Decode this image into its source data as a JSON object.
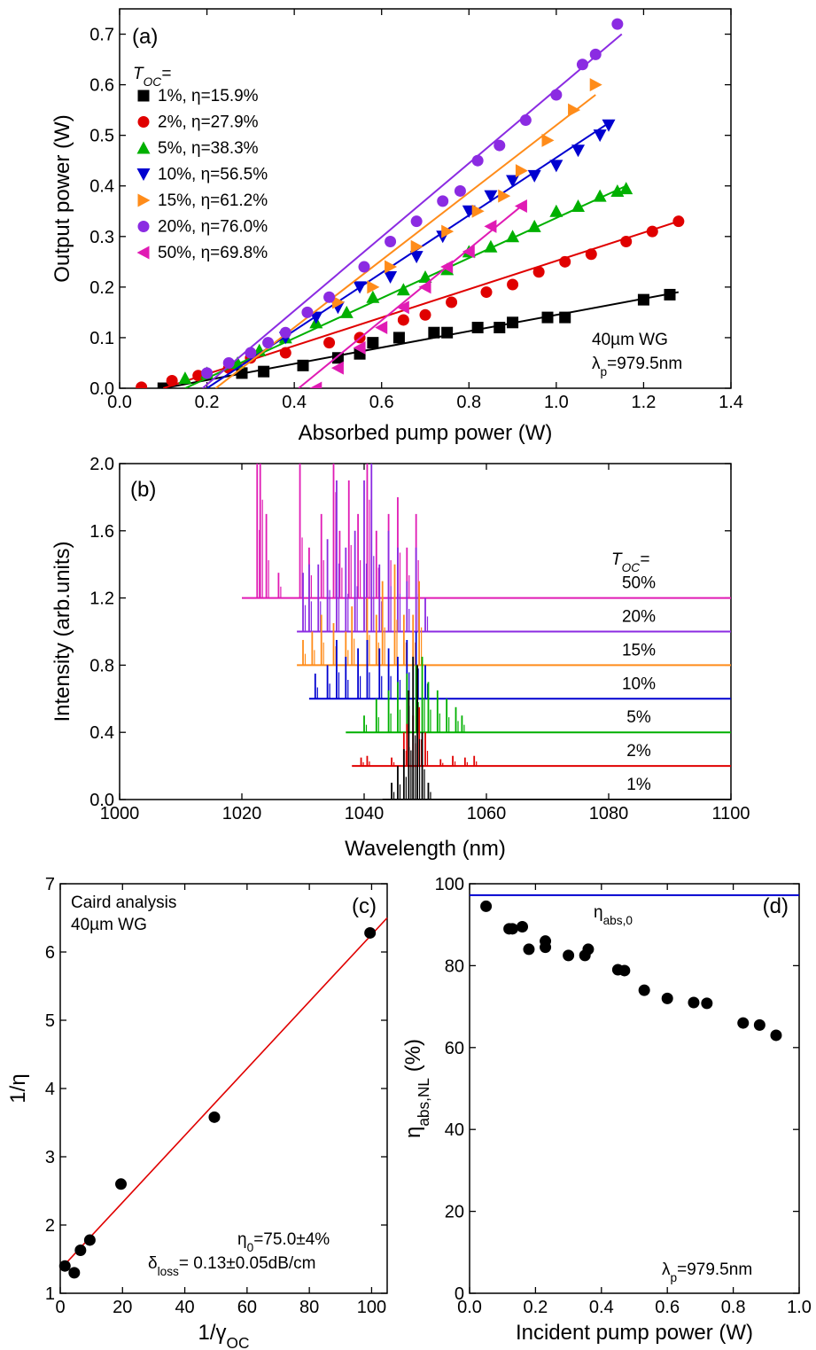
{
  "chart_data": [
    {
      "id": "a",
      "type": "scatter",
      "panel_label": "(a)",
      "xlabel": "Absorbed pump power (W)",
      "ylabel": "Output power (W)",
      "xlim": [
        0.0,
        1.4
      ],
      "ylim": [
        0.0,
        0.75
      ],
      "xticks": [
        "0.0",
        "0.2",
        "0.4",
        "0.6",
        "0.8",
        "1.0",
        "1.2",
        "1.4"
      ],
      "yticks": [
        "0.0",
        "0.1",
        "0.2",
        "0.3",
        "0.4",
        "0.5",
        "0.6",
        "0.7"
      ],
      "legend_title": "T",
      "legend_title_sub": "OC",
      "legend_title_suffix": "=",
      "legend_position": "top-left",
      "annotation_line1": "40µm WG",
      "annotation_line2_pre": "λ",
      "annotation_line2_sub": "p",
      "annotation_line2_post": "=979.5nm",
      "series": [
        {
          "name": "1%, η=15.9%",
          "color": "#000000",
          "marker": "square",
          "x": [
            0.1,
            0.28,
            0.33,
            0.42,
            0.5,
            0.55,
            0.58,
            0.64,
            0.72,
            0.75,
            0.82,
            0.87,
            0.9,
            0.98,
            1.02,
            1.2,
            1.26
          ],
          "y": [
            0.0,
            0.03,
            0.033,
            0.045,
            0.06,
            0.068,
            0.09,
            0.1,
            0.11,
            0.11,
            0.12,
            0.12,
            0.13,
            0.14,
            0.14,
            0.175,
            0.185
          ],
          "fit": [
            [
              0.1,
              0.0
            ],
            [
              1.28,
              0.19
            ]
          ]
        },
        {
          "name": "2%, η=27.9%",
          "color": "#e00000",
          "marker": "circle",
          "x": [
            0.05,
            0.12,
            0.18,
            0.25,
            0.3,
            0.38,
            0.48,
            0.55,
            0.65,
            0.7,
            0.76,
            0.84,
            0.9,
            0.96,
            1.02,
            1.08,
            1.16,
            1.22,
            1.28
          ],
          "y": [
            0.002,
            0.015,
            0.025,
            0.04,
            0.06,
            0.07,
            0.09,
            0.1,
            0.135,
            0.145,
            0.17,
            0.19,
            0.205,
            0.23,
            0.25,
            0.265,
            0.29,
            0.31,
            0.33
          ],
          "fit": [
            [
              0.1,
              0.0
            ],
            [
              1.28,
              0.33
            ]
          ]
        },
        {
          "name": "5%, η=38.3%",
          "color": "#00b000",
          "marker": "triangle-up",
          "x": [
            0.15,
            0.2,
            0.27,
            0.32,
            0.38,
            0.45,
            0.52,
            0.58,
            0.65,
            0.7,
            0.75,
            0.8,
            0.85,
            0.9,
            0.95,
            1.0,
            1.05,
            1.1,
            1.14,
            1.16
          ],
          "y": [
            0.02,
            0.03,
            0.05,
            0.075,
            0.1,
            0.13,
            0.15,
            0.18,
            0.195,
            0.22,
            0.235,
            0.27,
            0.28,
            0.3,
            0.32,
            0.35,
            0.36,
            0.38,
            0.39,
            0.395
          ],
          "fit": [
            [
              0.15,
              0.0
            ],
            [
              1.16,
              0.4
            ]
          ]
        },
        {
          "name": "10%, η=56.5%",
          "color": "#0000d0",
          "marker": "triangle-down",
          "x": [
            0.38,
            0.45,
            0.5,
            0.55,
            0.62,
            0.68,
            0.74,
            0.8,
            0.85,
            0.9,
            0.95,
            1.0,
            1.05,
            1.1,
            1.12
          ],
          "y": [
            0.1,
            0.14,
            0.16,
            0.2,
            0.22,
            0.26,
            0.3,
            0.35,
            0.38,
            0.41,
            0.42,
            0.44,
            0.47,
            0.5,
            0.52
          ],
          "fit": [
            [
              0.2,
              0.0
            ],
            [
              1.13,
              0.53
            ]
          ]
        },
        {
          "name": "15%, η=61.2%",
          "color": "#ff8c1a",
          "marker": "triangle-right",
          "x": [
            0.5,
            0.58,
            0.62,
            0.68,
            0.75,
            0.82,
            0.88,
            0.92,
            0.98,
            1.04,
            1.09
          ],
          "y": [
            0.17,
            0.2,
            0.24,
            0.28,
            0.31,
            0.35,
            0.38,
            0.43,
            0.49,
            0.55,
            0.6
          ],
          "fit": [
            [
              0.22,
              0.0
            ],
            [
              1.09,
              0.58
            ]
          ]
        },
        {
          "name": "20%, η=76.0%",
          "color": "#8b2be2",
          "marker": "circle",
          "x": [
            0.2,
            0.25,
            0.3,
            0.34,
            0.38,
            0.43,
            0.48,
            0.56,
            0.62,
            0.68,
            0.74,
            0.78,
            0.82,
            0.87,
            0.93,
            1.0,
            1.06,
            1.09,
            1.14
          ],
          "y": [
            0.03,
            0.05,
            0.07,
            0.09,
            0.11,
            0.15,
            0.18,
            0.24,
            0.29,
            0.33,
            0.37,
            0.39,
            0.45,
            0.48,
            0.53,
            0.58,
            0.64,
            0.66,
            0.72
          ],
          "fit": [
            [
              0.19,
              0.0
            ],
            [
              1.15,
              0.7
            ]
          ]
        },
        {
          "name": "50%, η=69.8%",
          "color": "#e01bb4",
          "marker": "triangle-left",
          "x": [
            0.45,
            0.5,
            0.55,
            0.6,
            0.65,
            0.7,
            0.75,
            0.8,
            0.85,
            0.92
          ],
          "y": [
            0.0,
            0.04,
            0.08,
            0.12,
            0.16,
            0.2,
            0.24,
            0.27,
            0.32,
            0.36
          ],
          "fit": [
            [
              0.41,
              0.0
            ],
            [
              0.92,
              0.36
            ]
          ]
        }
      ]
    },
    {
      "id": "b",
      "type": "line",
      "panel_label": "(b)",
      "xlabel": "Wavelength (nm)",
      "ylabel": "Intensity (arb.units)",
      "xlim": [
        1000,
        1100
      ],
      "ylim": [
        0.0,
        2.0
      ],
      "xticks": [
        "1000",
        "1020",
        "1040",
        "1060",
        "1080",
        "1100"
      ],
      "yticks": [
        "0.0",
        "0.4",
        "0.8",
        "1.2",
        "1.6",
        "2.0"
      ],
      "legend_title": "T",
      "legend_title_sub": "OC",
      "legend_title_suffix": "=",
      "series": [
        {
          "name": "50%",
          "color": "#e01bb4",
          "baseline": 1.2,
          "range": [
            1020,
            1052
          ],
          "peaks": [
            [
              1022.5,
              0.9
            ],
            [
              1023,
              1.3
            ],
            [
              1024,
              0.5
            ],
            [
              1026,
              0.15
            ],
            [
              1029.5,
              0.8
            ],
            [
              1031,
              0.3
            ],
            [
              1033,
              0.5
            ],
            [
              1035,
              1.4
            ],
            [
              1036,
              0.4
            ],
            [
              1037.5,
              0.7
            ],
            [
              1039,
              0.5
            ],
            [
              1040.5,
              1.3
            ],
            [
              1042,
              0.4
            ],
            [
              1044,
              0.5
            ],
            [
              1045.5,
              0.6
            ],
            [
              1047,
              0.3
            ],
            [
              1048.5,
              0.5
            ]
          ]
        },
        {
          "name": "20%",
          "color": "#8b2be2",
          "baseline": 1.0,
          "range": [
            1029,
            1052
          ],
          "peaks": [
            [
              1030,
              0.35
            ],
            [
              1031,
              0.4
            ],
            [
              1032.5,
              0.4
            ],
            [
              1034,
              0.55
            ],
            [
              1035.5,
              0.9
            ],
            [
              1037,
              0.5
            ],
            [
              1038.5,
              0.6
            ],
            [
              1040,
              0.9
            ],
            [
              1041.2,
              1.0
            ],
            [
              1042.5,
              0.4
            ],
            [
              1044,
              0.6
            ],
            [
              1045.5,
              0.5
            ],
            [
              1047,
              0.3
            ],
            [
              1048.5,
              0.5
            ],
            [
              1050,
              0.2
            ]
          ]
        },
        {
          "name": "15%",
          "color": "#ff8c1a",
          "baseline": 0.8,
          "range": [
            1029,
            1051
          ],
          "peaks": [
            [
              1030,
              0.15
            ],
            [
              1031.5,
              0.2
            ],
            [
              1033,
              0.3
            ],
            [
              1035,
              0.25
            ],
            [
              1037,
              0.2
            ],
            [
              1038,
              0.35
            ],
            [
              1040.5,
              0.4
            ],
            [
              1042,
              0.3
            ],
            [
              1043,
              0.5
            ],
            [
              1045,
              0.6
            ],
            [
              1046.5,
              0.3
            ],
            [
              1048,
              0.3
            ],
            [
              1049,
              0.5
            ]
          ]
        },
        {
          "name": "10%",
          "color": "#0000d0",
          "baseline": 0.6,
          "range": [
            1031,
            1052
          ],
          "peaks": [
            [
              1032,
              0.15
            ],
            [
              1034,
              0.2
            ],
            [
              1035.5,
              0.35
            ],
            [
              1037,
              0.25
            ],
            [
              1039,
              0.3
            ],
            [
              1040.5,
              0.35
            ],
            [
              1042.5,
              0.3
            ],
            [
              1044,
              0.3
            ],
            [
              1045.5,
              0.25
            ],
            [
              1047,
              0.35
            ],
            [
              1048.5,
              0.4
            ],
            [
              1050,
              0.2
            ]
          ]
        },
        {
          "name": "5%",
          "color": "#00b000",
          "baseline": 0.4,
          "range": [
            1037,
            1057
          ],
          "peaks": [
            [
              1040,
              0.1
            ],
            [
              1042,
              0.2
            ],
            [
              1044,
              0.25
            ],
            [
              1045.5,
              0.3
            ],
            [
              1047,
              0.35
            ],
            [
              1048.5,
              0.4
            ],
            [
              1049.5,
              0.45
            ],
            [
              1050.5,
              0.3
            ],
            [
              1052,
              0.25
            ],
            [
              1053.5,
              0.2
            ],
            [
              1055,
              0.15
            ],
            [
              1056,
              0.1
            ]
          ]
        },
        {
          "name": "2%",
          "color": "#e00000",
          "baseline": 0.2,
          "range": [
            1038,
            1060
          ],
          "peaks": [
            [
              1039.5,
              0.05
            ],
            [
              1040.5,
              0.06
            ],
            [
              1044.5,
              0.05
            ],
            [
              1046.5,
              0.2
            ],
            [
              1047,
              0.25
            ],
            [
              1048,
              0.3
            ],
            [
              1049,
              0.35
            ],
            [
              1050,
              0.2
            ],
            [
              1052.5,
              0.04
            ],
            [
              1054.5,
              0.06
            ],
            [
              1056.5,
              0.05
            ],
            [
              1058,
              0.06
            ]
          ]
        },
        {
          "name": "1%",
          "color": "#000000",
          "baseline": 0.0,
          "range": [
            1043,
            1052
          ],
          "peaks": [
            [
              1044.5,
              0.1
            ],
            [
              1045.5,
              0.2
            ],
            [
              1046.5,
              0.3
            ],
            [
              1047.3,
              0.65
            ],
            [
              1048,
              0.85
            ],
            [
              1048.7,
              0.8
            ],
            [
              1049.5,
              0.4
            ],
            [
              1050.5,
              0.1
            ]
          ]
        }
      ]
    },
    {
      "id": "c",
      "type": "scatter",
      "panel_label": "(c)",
      "xlabel_pre": "1/γ",
      "xlabel_sub": "OC",
      "ylabel": "1/η",
      "xlim": [
        0,
        105
      ],
      "ylim": [
        1,
        7
      ],
      "xticks": [
        "0",
        "20",
        "40",
        "60",
        "80",
        "100"
      ],
      "yticks": [
        "1",
        "2",
        "3",
        "4",
        "5",
        "6",
        "7"
      ],
      "annotation_line1": "Caird analysis",
      "annotation_line2": "40µm WG",
      "result_line1_pre": "η",
      "result_line1_sub": "0",
      "result_line1_post": "=75.0±4%",
      "result_line2_pre": "δ",
      "result_line2_sub": "loss",
      "result_line2_post": "= 0.13±0.05dB/cm",
      "points": {
        "x": [
          1.5,
          4.5,
          6.5,
          9.5,
          19.5,
          49.5,
          99.5
        ],
        "y": [
          1.4,
          1.3,
          1.63,
          1.78,
          2.6,
          3.58,
          6.28
        ]
      },
      "fit": {
        "color": "#e00000",
        "x": [
          0,
          105
        ],
        "y": [
          1.35,
          6.5
        ]
      }
    },
    {
      "id": "d",
      "type": "scatter",
      "panel_label": "(d)",
      "xlabel": "Incident pump power (W)",
      "ylabel_pre": "η",
      "ylabel_sub": "abs,NL",
      "ylabel_post": " (%)",
      "xlim": [
        0.0,
        1.0
      ],
      "ylim": [
        0,
        100
      ],
      "xticks": [
        "0.0",
        "0.2",
        "0.4",
        "0.6",
        "0.8",
        "1.0"
      ],
      "yticks": [
        "0",
        "20",
        "40",
        "60",
        "80",
        "100"
      ],
      "hline": {
        "y": 97.2,
        "color": "#0000d0",
        "label_pre": "η",
        "label_sub": "abs,0"
      },
      "annotation_pre": "λ",
      "annotation_sub": "p",
      "annotation_post": "=979.5nm",
      "points": {
        "x": [
          0.05,
          0.12,
          0.13,
          0.16,
          0.18,
          0.23,
          0.23,
          0.3,
          0.35,
          0.36,
          0.45,
          0.47,
          0.53,
          0.6,
          0.68,
          0.72,
          0.83,
          0.88,
          0.93
        ],
        "y": [
          94.5,
          89,
          89,
          89.5,
          84,
          86,
          84.5,
          82.5,
          82.5,
          84,
          79,
          78.8,
          74,
          72,
          71,
          70.8,
          66,
          65.5,
          63
        ]
      }
    }
  ]
}
